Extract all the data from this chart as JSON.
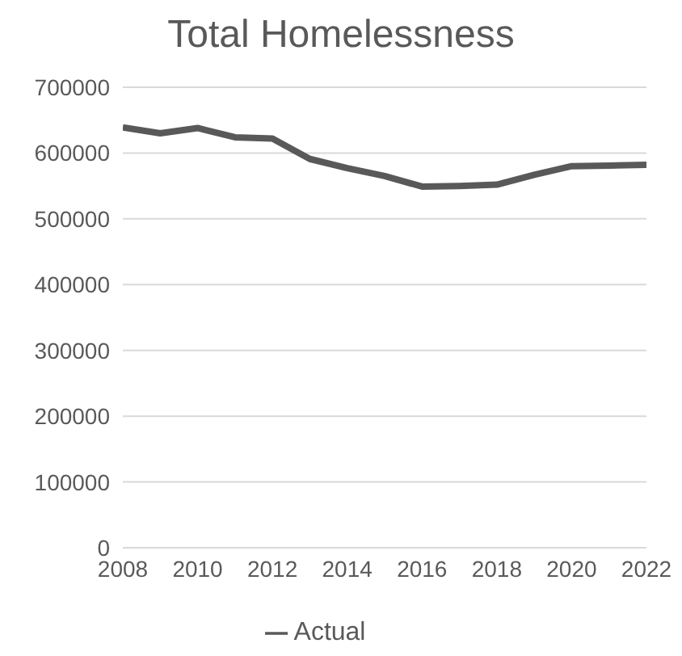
{
  "chart_data": {
    "type": "line",
    "title": "Total Homelessness",
    "x": [
      2008,
      2009,
      2010,
      2011,
      2012,
      2013,
      2014,
      2015,
      2016,
      2017,
      2018,
      2019,
      2020,
      2021,
      2022
    ],
    "series": [
      {
        "name": "Actual",
        "color": "#595959",
        "values": [
          639000,
          630000,
          638000,
          624000,
          622000,
          591000,
          577000,
          565000,
          549000,
          550000,
          552000,
          567000,
          580000,
          581000,
          582000
        ]
      }
    ],
    "xlim": [
      2008,
      2022
    ],
    "xticks": [
      2008,
      2010,
      2012,
      2014,
      2016,
      2018,
      2020,
      2022
    ],
    "ylim": [
      0,
      700000
    ],
    "yticks": [
      0,
      100000,
      200000,
      300000,
      400000,
      500000,
      600000,
      700000
    ],
    "grid": "y",
    "legend": "bottom",
    "marker": "none",
    "line_style": "solid"
  }
}
